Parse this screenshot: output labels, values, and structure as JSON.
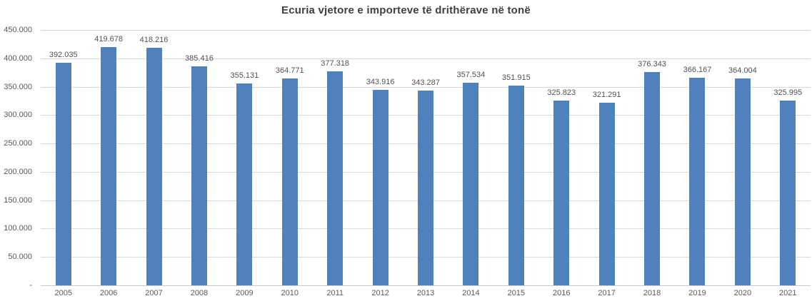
{
  "chart_data": {
    "type": "bar",
    "title": "Ecuria vjetore e importeve të drithërave në tonë",
    "categories": [
      "2005",
      "2006",
      "2007",
      "2008",
      "2009",
      "2010",
      "2011",
      "2012",
      "2013",
      "2014",
      "2015",
      "2016",
      "2017",
      "2018",
      "2019",
      "2020",
      "2021"
    ],
    "values": [
      392035,
      419678,
      418216,
      385416,
      355131,
      364771,
      377318,
      343916,
      343287,
      357534,
      351915,
      325823,
      321291,
      376343,
      366167,
      364004,
      325995
    ],
    "value_labels": [
      "392.035",
      "419.678",
      "418.216",
      "385.416",
      "355.131",
      "364.771",
      "377.318",
      "343.916",
      "343.287",
      "357.534",
      "351.915",
      "325.823",
      "321.291",
      "376.343",
      "366.167",
      "364.004",
      "325.995"
    ],
    "xlabel": "",
    "ylabel": "",
    "ylim": [
      0,
      450000
    ],
    "y_tick_step": 50000,
    "y_tick_labels": [
      "450.000",
      "400.000",
      "350.000",
      "300.000",
      "250.000",
      "200.000",
      "150.000",
      "100.000",
      "50.000",
      "-"
    ],
    "grid": "horizontal",
    "legend_position": "none",
    "bar_color": "#4f81bd",
    "gridline_color": "#d9d9d9",
    "axis_line_color": "#c9c9c9",
    "title_color": "#404040",
    "label_color": "#595959"
  }
}
